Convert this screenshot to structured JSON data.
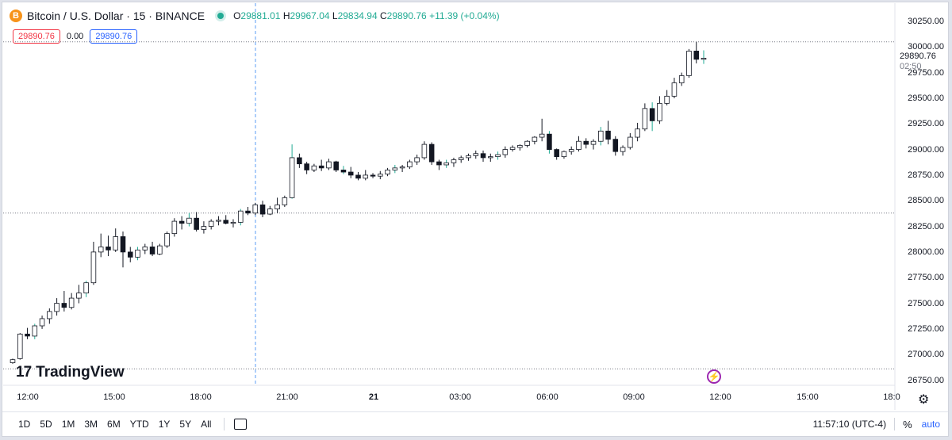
{
  "header": {
    "symbol_icon": "B",
    "title": "Bitcoin / U.S. Dollar · 15 · BINANCE",
    "ohlc": {
      "o_label": "O",
      "o": "29881.01",
      "h_label": "H",
      "h": "29967.04",
      "l_label": "L",
      "l": "29834.94",
      "c_label": "C",
      "c": "29890.76",
      "change": "+11.39 (+0.04%)"
    },
    "sell_price": "29890.76",
    "spread": "0.00",
    "buy_price": "29890.76"
  },
  "price_scale": {
    "last_price": "29890.76",
    "countdown": "02:50"
  },
  "branding": "TradingView",
  "toolbar": {
    "timeframes": [
      "1D",
      "5D",
      "1M",
      "3M",
      "6M",
      "YTD",
      "1Y",
      "5Y",
      "All"
    ],
    "clock": "11:57:10 (UTC-4)",
    "percent": "%",
    "auto": "auto"
  },
  "colors": {
    "up_body": "#ffffff",
    "down_body": "#131722",
    "wick": "#131722",
    "up_wick_accent": "#22ab94",
    "crosshair": "#5b9cf6",
    "sell": "#f23645",
    "buy": "#2962ff"
  },
  "chart_data": {
    "type": "candlestick",
    "interval": "15",
    "exchange": "BINANCE",
    "x_tick_labels": [
      "12:00",
      "15:00",
      "18:00",
      "21:00",
      "21",
      "03:00",
      "06:00",
      "09:00",
      "12:00",
      "15:00",
      "18:0"
    ],
    "y_tick_labels": [
      "30250.00",
      "30000.00",
      "29750.00",
      "29500.00",
      "29250.00",
      "29000.00",
      "28750.00",
      "28500.00",
      "28250.00",
      "28000.00",
      "27750.00",
      "27500.00",
      "27250.00",
      "27000.00",
      "26750.00"
    ],
    "ylim": [
      26700,
      30350
    ],
    "candles": [
      [
        26920,
        26960,
        26910,
        26950
      ],
      [
        26960,
        27210,
        26950,
        27200
      ],
      [
        27200,
        27260,
        27150,
        27180
      ],
      [
        27180,
        27300,
        27150,
        27280
      ],
      [
        27280,
        27380,
        27250,
        27350
      ],
      [
        27350,
        27450,
        27300,
        27420
      ],
      [
        27420,
        27550,
        27380,
        27500
      ],
      [
        27500,
        27620,
        27420,
        27460
      ],
      [
        27460,
        27600,
        27440,
        27550
      ],
      [
        27550,
        27680,
        27500,
        27600
      ],
      [
        27600,
        27720,
        27560,
        27700
      ],
      [
        27700,
        28100,
        27680,
        28000
      ],
      [
        28000,
        28180,
        27950,
        28050
      ],
      [
        28050,
        28160,
        27960,
        28020
      ],
      [
        28020,
        28230,
        28000,
        28150
      ],
      [
        28150,
        28200,
        27850,
        28000
      ],
      [
        28000,
        28050,
        27900,
        27950
      ],
      [
        27950,
        28050,
        27920,
        28020
      ],
      [
        28020,
        28080,
        27980,
        28050
      ],
      [
        28050,
        28100,
        27960,
        27980
      ],
      [
        27980,
        28080,
        27970,
        28060
      ],
      [
        28060,
        28200,
        28040,
        28180
      ],
      [
        28180,
        28330,
        28150,
        28300
      ],
      [
        28300,
        28350,
        28220,
        28280
      ],
      [
        28280,
        28380,
        28250,
        28330
      ],
      [
        28330,
        28390,
        28200,
        28220
      ],
      [
        28220,
        28300,
        28180,
        28250
      ],
      [
        28250,
        28320,
        28220,
        28300
      ],
      [
        28300,
        28350,
        28260,
        28310
      ],
      [
        28310,
        28360,
        28270,
        28280
      ],
      [
        28280,
        28320,
        28240,
        28290
      ],
      [
        28290,
        28420,
        28260,
        28400
      ],
      [
        28400,
        28440,
        28360,
        28380
      ],
      [
        28380,
        28480,
        28360,
        28460
      ],
      [
        28460,
        28500,
        28340,
        28370
      ],
      [
        28370,
        28450,
        28360,
        28420
      ],
      [
        28420,
        28530,
        28380,
        28460
      ],
      [
        28460,
        28550,
        28440,
        28530
      ],
      [
        28530,
        29050,
        28520,
        28920
      ],
      [
        28920,
        28960,
        28820,
        28860
      ],
      [
        28860,
        28880,
        28760,
        28800
      ],
      [
        28800,
        28860,
        28780,
        28840
      ],
      [
        28840,
        28900,
        28790,
        28820
      ],
      [
        28820,
        28910,
        28800,
        28880
      ],
      [
        28880,
        28890,
        28780,
        28800
      ],
      [
        28800,
        28840,
        28760,
        28780
      ],
      [
        28780,
        28830,
        28720,
        28750
      ],
      [
        28750,
        28780,
        28700,
        28720
      ],
      [
        28720,
        28800,
        28700,
        28750
      ],
      [
        28750,
        28770,
        28720,
        28740
      ],
      [
        28740,
        28790,
        28710,
        28760
      ],
      [
        28760,
        28820,
        28740,
        28800
      ],
      [
        28800,
        28850,
        28770,
        28820
      ],
      [
        28820,
        28850,
        28780,
        28830
      ],
      [
        28830,
        28900,
        28810,
        28880
      ],
      [
        28880,
        28950,
        28850,
        28920
      ],
      [
        28920,
        29080,
        28900,
        29050
      ],
      [
        29050,
        29070,
        28850,
        28880
      ],
      [
        28880,
        28900,
        28800,
        28850
      ],
      [
        28850,
        28900,
        28820,
        28870
      ],
      [
        28870,
        28920,
        28830,
        28900
      ],
      [
        28900,
        28940,
        28870,
        28920
      ],
      [
        28920,
        28960,
        28890,
        28940
      ],
      [
        28940,
        28990,
        28910,
        28960
      ],
      [
        28960,
        28990,
        28880,
        28920
      ],
      [
        28920,
        28960,
        28880,
        28930
      ],
      [
        28930,
        28980,
        28900,
        28950
      ],
      [
        28950,
        29030,
        28920,
        29000
      ],
      [
        29000,
        29040,
        28980,
        29020
      ],
      [
        29020,
        29050,
        28990,
        29040
      ],
      [
        29040,
        29090,
        29020,
        29080
      ],
      [
        29080,
        29130,
        29050,
        29120
      ],
      [
        29120,
        29300,
        29080,
        29150
      ],
      [
        29150,
        29180,
        28960,
        29000
      ],
      [
        29000,
        29010,
        28900,
        28930
      ],
      [
        28930,
        28990,
        28910,
        28980
      ],
      [
        28980,
        29030,
        28950,
        29000
      ],
      [
        29000,
        29130,
        28980,
        29080
      ],
      [
        29080,
        29110,
        29010,
        29050
      ],
      [
        29050,
        29100,
        29000,
        29080
      ],
      [
        29080,
        29220,
        29040,
        29180
      ],
      [
        29180,
        29280,
        29050,
        29100
      ],
      [
        29100,
        29130,
        28940,
        28980
      ],
      [
        28980,
        29040,
        28940,
        29020
      ],
      [
        29020,
        29160,
        29000,
        29120
      ],
      [
        29120,
        29260,
        29080,
        29200
      ],
      [
        29200,
        29450,
        29180,
        29400
      ],
      [
        29400,
        29460,
        29180,
        29280
      ],
      [
        29280,
        29520,
        29250,
        29450
      ],
      [
        29450,
        29580,
        29430,
        29520
      ],
      [
        29520,
        29700,
        29500,
        29650
      ],
      [
        29650,
        29750,
        29620,
        29720
      ],
      [
        29720,
        29980,
        29700,
        29960
      ],
      [
        29960,
        30050,
        29840,
        29880
      ],
      [
        29880,
        29967.04,
        29834.94,
        29890.76
      ]
    ]
  }
}
